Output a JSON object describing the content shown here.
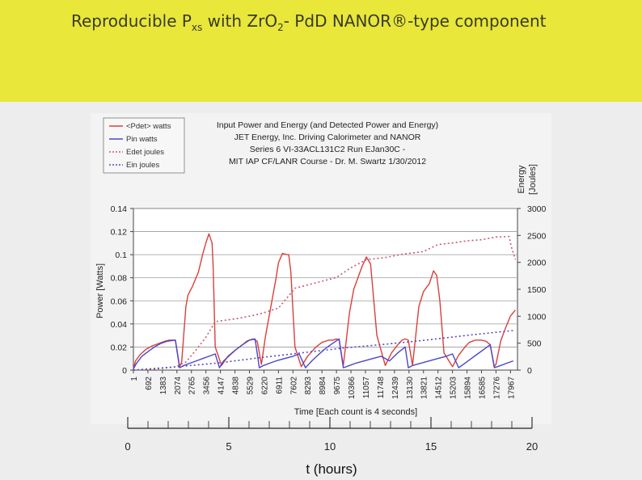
{
  "slide": {
    "title_main": "Reproducible P",
    "title_sub": "xs",
    "title_mid": " with ZrO",
    "title_sub2": "2",
    "title_end": "- PdD NANOR®-type component"
  },
  "chart_data": {
    "type": "line",
    "title_lines": [
      "Input Power and Energy (and Detected Power and Energy)",
      "JET Energy, Inc. Driving Calorimeter and NANOR",
      "Series 6  VI-33ACL131C2        Run EJan30C -",
      "MIT IAP CF/LANR Course - Dr. M. Swartz  1/30/2012"
    ],
    "xlabel": "Time [Each count is 4 seconds]",
    "ylabel": "Power [Watts]",
    "y2label_line1": "Energy",
    "y2label_line2": "[Joules]",
    "ylim": [
      0,
      0.14
    ],
    "y2lim": [
      0,
      3000
    ],
    "yticks": [
      "0",
      "0.02",
      "0.04",
      "0.06",
      "0.08",
      "0.1",
      "0.12",
      "0.14"
    ],
    "y2ticks": [
      "0",
      "500",
      "1000",
      "1500",
      "2000",
      "2500",
      "3000"
    ],
    "xlim": [
      1,
      18300
    ],
    "xticks": [
      "1",
      "692",
      "1383",
      "2074",
      "2765",
      "3456",
      "4147",
      "4838",
      "5529",
      "6220",
      "6911",
      "7602",
      "8293",
      "8984",
      "9675",
      "10366",
      "11057",
      "11748",
      "12439",
      "13130",
      "13821",
      "14512",
      "15203",
      "15894",
      "16585",
      "17276",
      "17967"
    ],
    "grid": true,
    "legend_position": "top-left",
    "legend": [
      {
        "label": "<Pdet> watts",
        "color": "#d9403a",
        "style": "solid"
      },
      {
        "label": "Pin watts",
        "color": "#4a46c8",
        "style": "solid"
      },
      {
        "label": "Edet joules",
        "color": "#c85a6a",
        "style": "dotted"
      },
      {
        "label": "Ein joules",
        "color": "#5a4ab8",
        "style": "dotted"
      }
    ],
    "series": [
      {
        "name": "<Pdet> watts",
        "axis": "left",
        "x": [
          1,
          100,
          300,
          600,
          900,
          1200,
          1500,
          1700,
          2000,
          2200,
          2300,
          2500,
          2600,
          2800,
          3100,
          3300,
          3450,
          3600,
          3750,
          3800,
          3900,
          4200,
          4500,
          4900,
          5200,
          5400,
          5529,
          5700,
          5900,
          6100,
          6300,
          6600,
          6800,
          6911,
          7100,
          7300,
          7400,
          7500,
          7700,
          8000,
          8300,
          8700,
          8984,
          9300,
          9500,
          9675,
          9800,
          10000,
          10300,
          10500,
          10700,
          10900,
          11100,
          11300,
          11600,
          12000,
          12300,
          12600,
          12800,
          12950,
          13100,
          13300,
          13600,
          13821,
          14100,
          14300,
          14450,
          14600,
          14800,
          15203,
          15500,
          15800,
          16000,
          16300,
          16585,
          16800,
          17000,
          17200,
          17276,
          17500,
          17700,
          17967,
          18200
        ],
        "values": [
          0.001,
          0.008,
          0.013,
          0.018,
          0.021,
          0.023,
          0.025,
          0.026,
          0.026,
          0.003,
          0.007,
          0.055,
          0.065,
          0.072,
          0.085,
          0.1,
          0.11,
          0.118,
          0.11,
          0.09,
          0.02,
          0.004,
          0.012,
          0.018,
          0.022,
          0.025,
          0.026,
          0.027,
          0.025,
          0.005,
          0.03,
          0.06,
          0.08,
          0.093,
          0.101,
          0.1,
          0.1,
          0.085,
          0.02,
          0.003,
          0.012,
          0.02,
          0.024,
          0.026,
          0.026,
          0.027,
          0.026,
          0.004,
          0.05,
          0.07,
          0.08,
          0.09,
          0.098,
          0.092,
          0.03,
          0.004,
          0.015,
          0.022,
          0.026,
          0.027,
          0.026,
          0.004,
          0.055,
          0.068,
          0.075,
          0.086,
          0.082,
          0.06,
          0.015,
          0.003,
          0.013,
          0.02,
          0.024,
          0.026,
          0.026,
          0.025,
          0.022,
          0.003,
          0.005,
          0.025,
          0.035,
          0.047,
          0.052
        ]
      },
      {
        "name": "Pin watts",
        "axis": "left",
        "x": [
          1,
          150,
          400,
          700,
          1000,
          1300,
          1600,
          2000,
          2200,
          2400,
          2700,
          3000,
          3300,
          3600,
          3900,
          4100,
          4300,
          4600,
          4900,
          5200,
          5529,
          5800,
          6000,
          6200,
          6500,
          6800,
          7200,
          7600,
          7900,
          8200,
          8500,
          8800,
          9100,
          9400,
          9800,
          10000,
          10300,
          10600,
          11000,
          11400,
          11800,
          12200,
          12600,
          12950,
          13100,
          13300,
          13700,
          14100,
          14500,
          14900,
          15203,
          15500,
          15800,
          16100,
          16400,
          16700,
          17000,
          17200,
          17500,
          17800,
          18100
        ],
        "values": [
          0.001,
          0.006,
          0.012,
          0.016,
          0.02,
          0.023,
          0.025,
          0.026,
          0.002,
          0.004,
          0.006,
          0.008,
          0.01,
          0.012,
          0.014,
          0.002,
          0.008,
          0.013,
          0.018,
          0.022,
          0.026,
          0.027,
          0.002,
          0.004,
          0.006,
          0.008,
          0.01,
          0.012,
          0.014,
          0.002,
          0.008,
          0.013,
          0.018,
          0.022,
          0.027,
          0.002,
          0.004,
          0.006,
          0.008,
          0.01,
          0.012,
          0.008,
          0.015,
          0.02,
          0.002,
          0.004,
          0.006,
          0.008,
          0.01,
          0.012,
          0.014,
          0.002,
          0.006,
          0.01,
          0.014,
          0.018,
          0.022,
          0.002,
          0.004,
          0.006,
          0.008
        ]
      },
      {
        "name": "Edet joules",
        "axis": "right",
        "x": [
          1,
          1000,
          2000,
          2500,
          3000,
          3456,
          3900,
          5000,
          6000,
          6911,
          7700,
          8500,
          9675,
          10366,
          11100,
          12000,
          12800,
          13821,
          14500,
          15200,
          15894,
          16585,
          17276,
          17900,
          18000,
          18200
        ],
        "values": [
          0,
          20,
          60,
          150,
          380,
          610,
          900,
          960,
          1040,
          1150,
          1520,
          1600,
          1720,
          1900,
          2050,
          2090,
          2150,
          2200,
          2330,
          2360,
          2400,
          2420,
          2470,
          2480,
          2300,
          2050
        ]
      },
      {
        "name": "Ein joules",
        "axis": "right",
        "x": [
          1,
          2000,
          4000,
          6000,
          8000,
          10000,
          12000,
          14000,
          16000,
          18200
        ],
        "values": [
          0,
          60,
          130,
          230,
          320,
          410,
          480,
          560,
          650,
          740
        ]
      }
    ]
  },
  "hours_axis": {
    "label": "t (hours)",
    "ticks": [
      "0",
      "5",
      "10",
      "15",
      "20"
    ],
    "max": 20
  }
}
